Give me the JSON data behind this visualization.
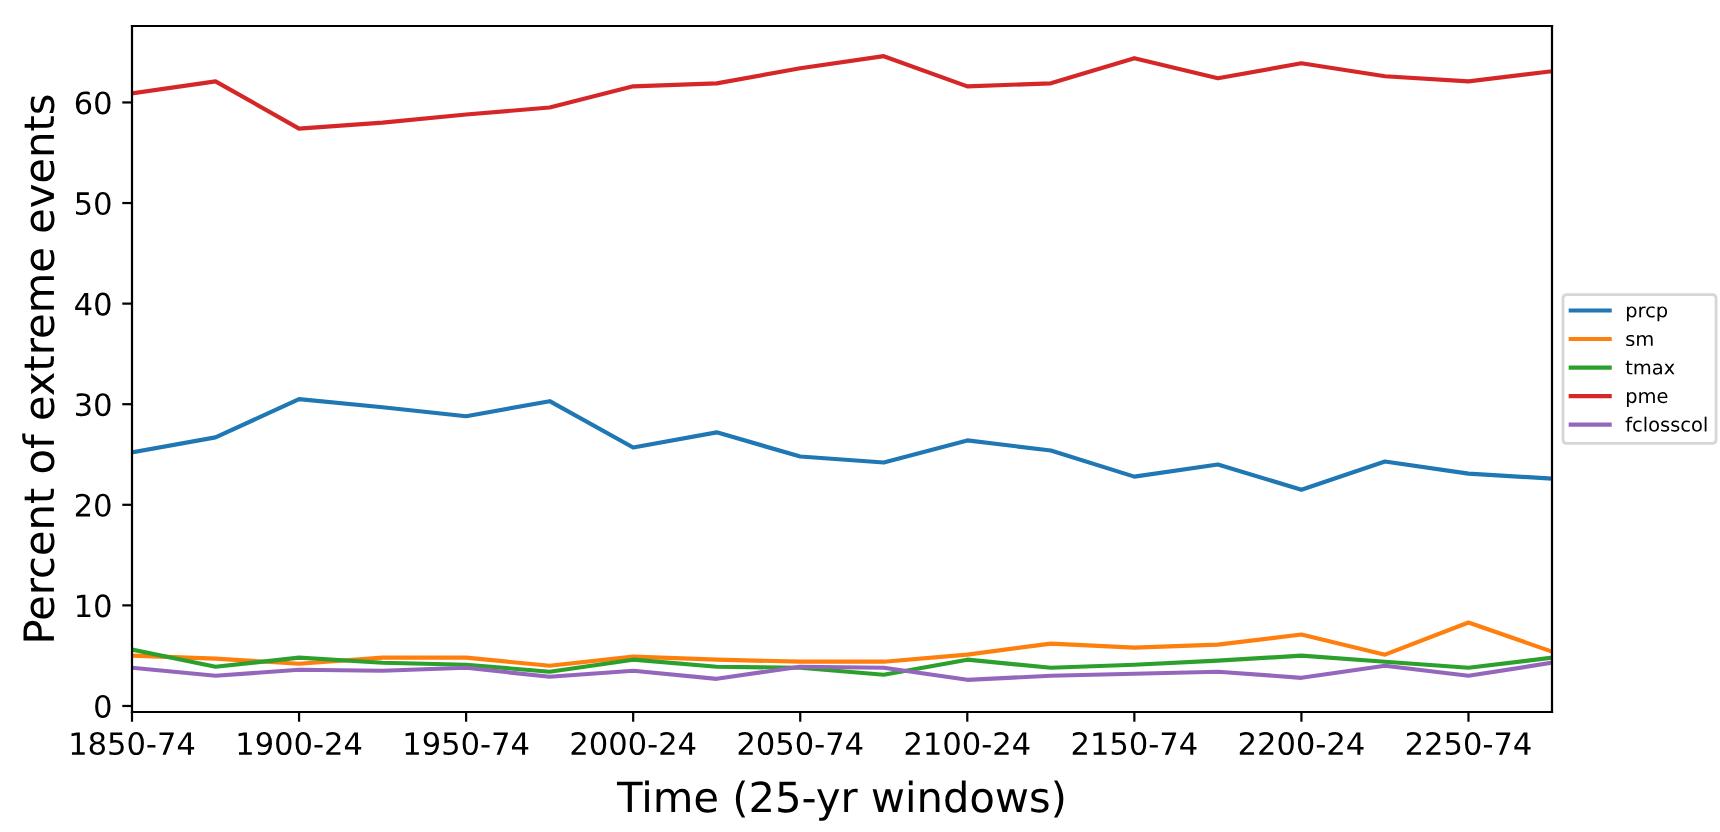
{
  "chart_data": {
    "type": "line",
    "xlabel": "Time (25-yr windows)",
    "ylabel": "Percent of extreme events",
    "categories": [
      "1850-74",
      null,
      "1900-24",
      null,
      "1950-74",
      null,
      "2000-24",
      null,
      "2050-74",
      null,
      "2100-24",
      null,
      "2150-74",
      null,
      "2200-24",
      null,
      "2250-74",
      null
    ],
    "series": [
      {
        "name": "prcp",
        "color": "#1f77b4",
        "values": [
          25.2,
          26.7,
          30.5,
          29.7,
          28.8,
          30.3,
          25.7,
          27.2,
          24.8,
          24.2,
          26.4,
          25.4,
          22.8,
          24.0,
          21.5,
          24.3,
          23.1,
          22.6
        ]
      },
      {
        "name": "sm",
        "color": "#ff7f0e",
        "values": [
          5.0,
          4.7,
          4.2,
          4.8,
          4.8,
          4.0,
          4.9,
          4.6,
          4.4,
          4.4,
          5.1,
          6.2,
          5.8,
          6.1,
          7.1,
          5.1,
          8.3,
          5.4
        ]
      },
      {
        "name": "tmax",
        "color": "#2ca02c",
        "values": [
          5.6,
          3.9,
          4.8,
          4.3,
          4.1,
          3.4,
          4.6,
          3.9,
          3.8,
          3.1,
          4.6,
          3.8,
          4.1,
          4.5,
          5.0,
          4.4,
          3.8,
          4.8
        ]
      },
      {
        "name": "pme",
        "color": "#d62728",
        "values": [
          60.9,
          62.1,
          57.4,
          58.0,
          58.8,
          59.5,
          61.6,
          61.9,
          63.4,
          64.6,
          61.6,
          61.9,
          64.4,
          62.4,
          63.9,
          62.6,
          62.1,
          63.1
        ]
      },
      {
        "name": "fclosscol",
        "color": "#9467bd",
        "values": [
          3.8,
          3.0,
          3.6,
          3.5,
          3.8,
          2.9,
          3.5,
          2.7,
          3.9,
          3.8,
          2.6,
          3.0,
          3.2,
          3.4,
          2.8,
          4.0,
          3.0,
          4.3
        ]
      }
    ],
    "ylim": [
      -0.6,
      67.6
    ],
    "yticks": [
      0,
      10,
      20,
      30,
      40,
      50,
      60
    ],
    "grid": false,
    "legend": "right",
    "line_style": "solid",
    "marker": "none"
  }
}
